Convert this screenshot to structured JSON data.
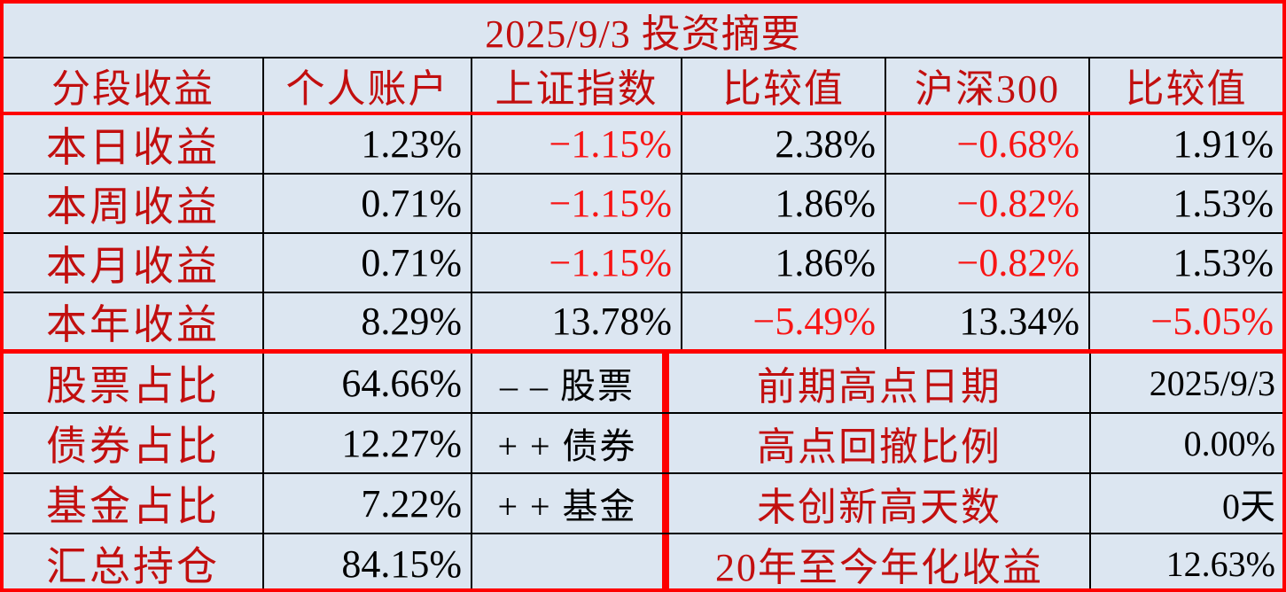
{
  "title": "2025/9/3 投资摘要",
  "colors": {
    "background": "#dce6f1",
    "label_red": "#c20f0f",
    "negative_red": "#f81414",
    "grid_red": "#fe0000",
    "grid_black": "#000000",
    "value_black": "#000000"
  },
  "returns_table": {
    "headers": [
      "分段收益",
      "个人账户",
      "上证指数",
      "比较值",
      "沪深300",
      "比较值"
    ],
    "rows": [
      {
        "label": "本日收益",
        "values": [
          "1.23%",
          "−1.15%",
          "2.38%",
          "−0.68%",
          "1.91%"
        ]
      },
      {
        "label": "本周收益",
        "values": [
          "0.71%",
          "−1.15%",
          "1.86%",
          "−0.82%",
          "1.53%"
        ]
      },
      {
        "label": "本月收益",
        "values": [
          "0.71%",
          "−1.15%",
          "1.86%",
          "−0.82%",
          "1.53%"
        ]
      },
      {
        "label": "本年收益",
        "values": [
          "8.29%",
          "13.78%",
          "−5.49%",
          "13.34%",
          "−5.05%"
        ]
      }
    ]
  },
  "portfolio": {
    "rows": [
      {
        "label": "股票占比",
        "value": "64.66%",
        "note": "– – 股票"
      },
      {
        "label": "债券占比",
        "value": "12.27%",
        "note": "+ + 债券"
      },
      {
        "label": "基金占比",
        "value": "7.22%",
        "note": "+ + 基金"
      },
      {
        "label": "汇总持仓",
        "value": "84.15%",
        "note": ""
      }
    ]
  },
  "stats": {
    "rows": [
      {
        "label": "前期高点日期",
        "value": "2025/9/3"
      },
      {
        "label": "高点回撤比例",
        "value": "0.00%"
      },
      {
        "label": "未创新高天数",
        "value": "0天"
      },
      {
        "label": "20年至今年化收益",
        "value": "12.63%"
      }
    ]
  }
}
